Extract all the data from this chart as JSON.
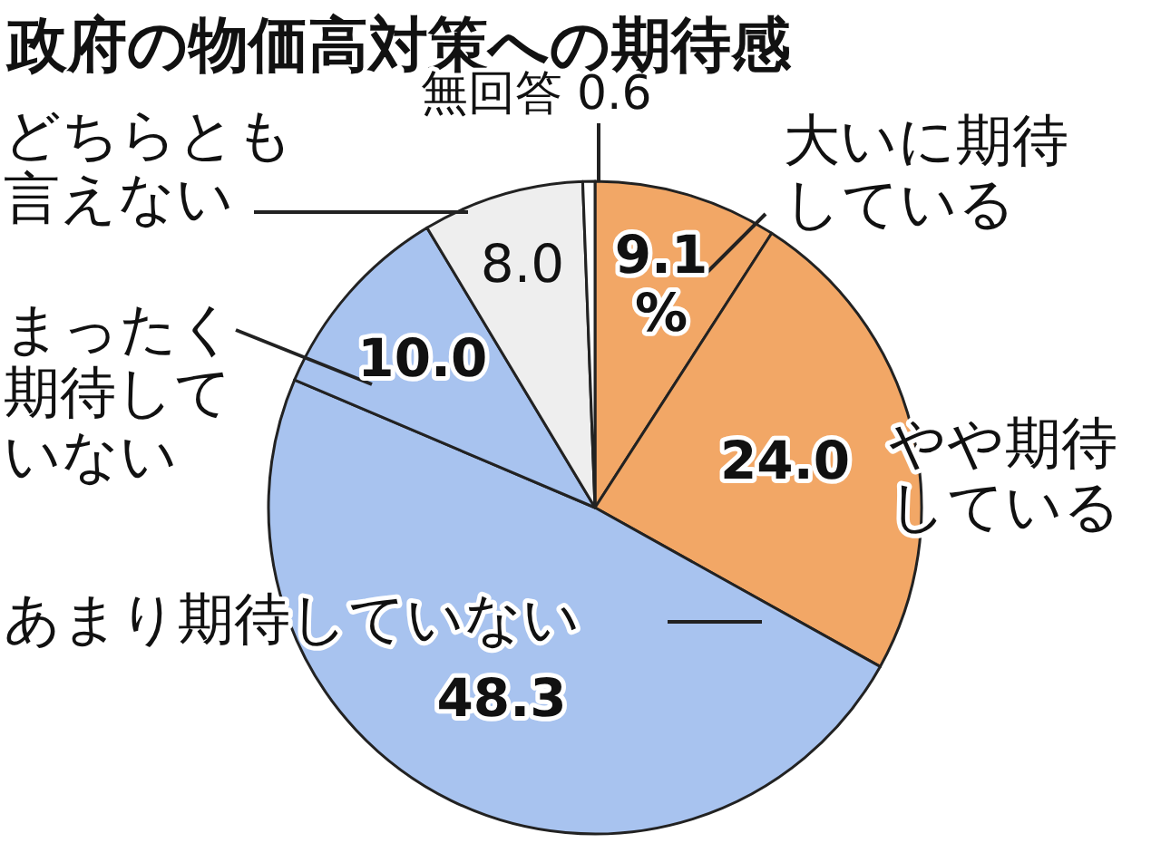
{
  "chart_data": {
    "type": "pie",
    "title": "政府の物価高対策への期待感",
    "categories": [
      "大いに期待している",
      "やや期待している",
      "あまり期待していない",
      "まったく期待していない",
      "どちらとも言えない",
      "無回答"
    ],
    "values": [
      9.1,
      24.0,
      48.3,
      10.0,
      8.0,
      0.6
    ],
    "value_labels": [
      "9.1\n%",
      "24.0",
      "48.3",
      "10.0",
      "8.0",
      "0.6"
    ],
    "colors": [
      "#f2a766",
      "#f2a766",
      "#a8c3ef",
      "#a8c3ef",
      "#eeeeee",
      "#ffffff"
    ]
  }
}
